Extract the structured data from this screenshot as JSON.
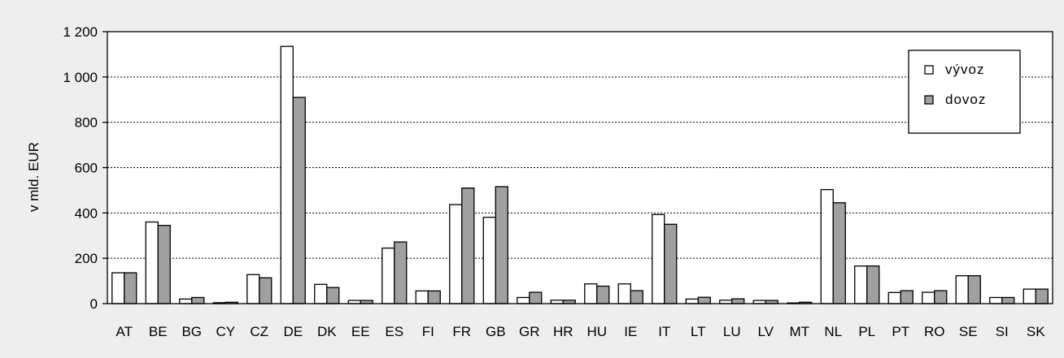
{
  "chart_data": {
    "type": "bar",
    "categories": [
      "AT",
      "BE",
      "BG",
      "CY",
      "CZ",
      "DE",
      "DK",
      "EE",
      "ES",
      "FI",
      "FR",
      "GB",
      "GR",
      "HR",
      "HU",
      "IE",
      "IT",
      "LT",
      "LU",
      "LV",
      "MT",
      "NL",
      "PL",
      "PT",
      "RO",
      "SE",
      "SI",
      "SK"
    ],
    "series": [
      {
        "name": "vývoz",
        "color": "#ffffff",
        "values": [
          136,
          360,
          20,
          4,
          128,
          1135,
          85,
          14,
          245,
          56,
          437,
          381,
          27,
          15,
          87,
          87,
          393,
          20,
          15,
          14,
          3,
          503,
          166,
          49,
          50,
          123,
          27,
          64
        ]
      },
      {
        "name": "dovoz",
        "color": "#a0a0a0",
        "values": [
          136,
          345,
          27,
          6,
          114,
          910,
          71,
          14,
          272,
          56,
          510,
          516,
          50,
          15,
          77,
          57,
          350,
          28,
          21,
          14,
          6,
          445,
          166,
          57,
          57,
          123,
          27,
          64
        ]
      }
    ],
    "title": "",
    "xlabel": "",
    "ylabel": "v mld. EUR",
    "ylim": [
      0,
      1200
    ],
    "yticks": [
      0,
      200,
      400,
      600,
      800,
      1000,
      1200
    ],
    "ytick_labels": [
      "0",
      "200",
      "400",
      "600",
      "800",
      "1 000",
      "1 200"
    ],
    "grid": true,
    "legend_position": "top-right"
  }
}
